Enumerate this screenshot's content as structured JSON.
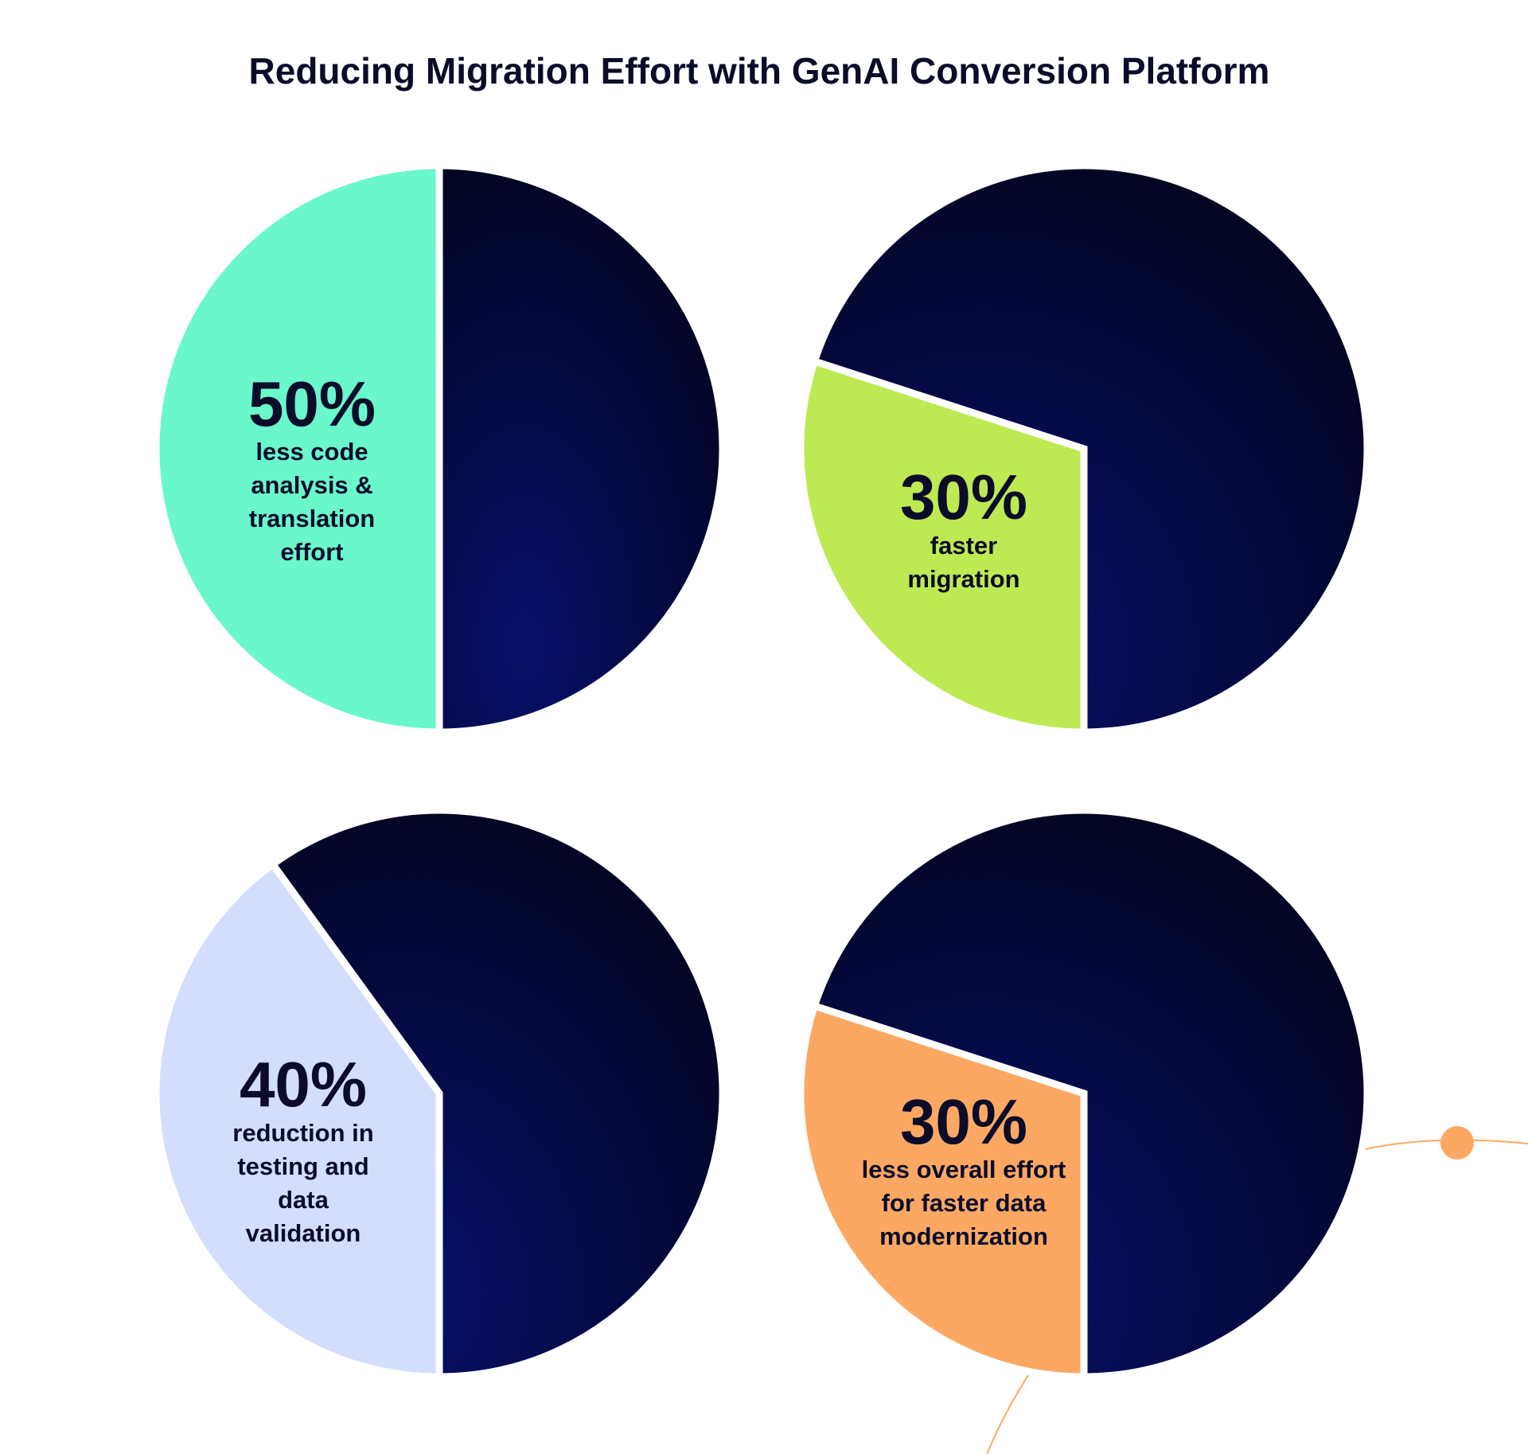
{
  "title": "Reducing Migration Effort with GenAI Conversion Platform",
  "colors": {
    "dark_gradient_inner": "#07106a",
    "dark_gradient_outer": "#03041d",
    "decor_orange": "#fca863"
  },
  "chart_data": [
    {
      "type": "pie",
      "values": [
        50,
        50
      ],
      "highlight_value": "50%",
      "label_lines": [
        "less code",
        "analysis &",
        "translation",
        "effort"
      ],
      "highlight_color": "#69f7cb"
    },
    {
      "type": "pie",
      "values": [
        30,
        70
      ],
      "highlight_value": "30%",
      "label_lines": [
        "faster",
        "migration"
      ],
      "highlight_color": "#bdea52"
    },
    {
      "type": "pie",
      "values": [
        40,
        60
      ],
      "highlight_value": "40%",
      "label_lines": [
        "reduction in",
        "testing and",
        "data",
        "validation"
      ],
      "highlight_color": "#d3defd"
    },
    {
      "type": "pie",
      "values": [
        30,
        70
      ],
      "highlight_value": "30%",
      "label_lines": [
        "less overall effort",
        "for faster data",
        "modernization"
      ],
      "highlight_color": "#fca863"
    }
  ]
}
